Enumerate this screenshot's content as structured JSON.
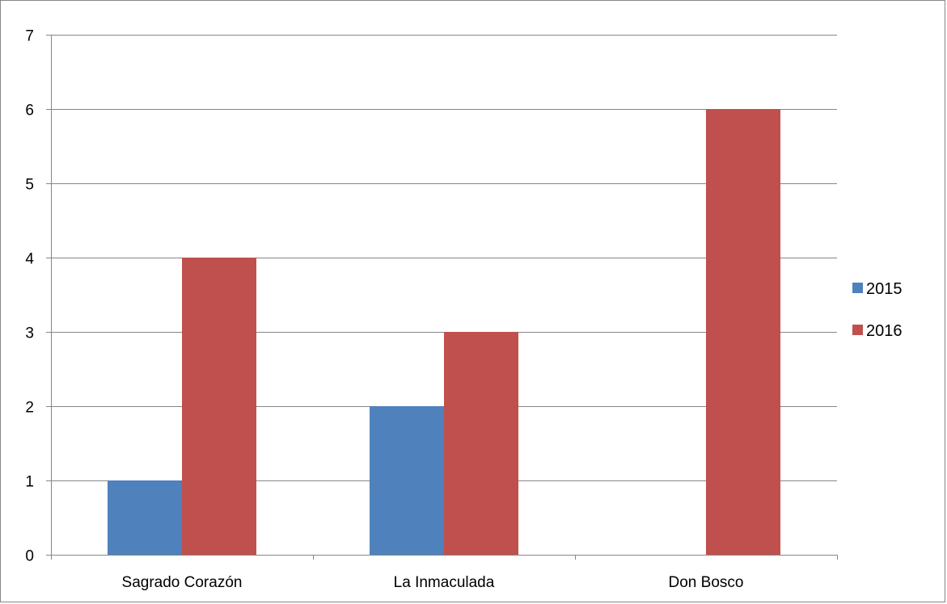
{
  "chart_data": {
    "type": "bar",
    "categories": [
      "Sagrado Corazón",
      "La Inmaculada",
      "Don Bosco"
    ],
    "series": [
      {
        "name": "2015",
        "values": [
          1,
          2,
          0
        ],
        "color": "#4F81BD"
      },
      {
        "name": "2016",
        "values": [
          4,
          3,
          6
        ],
        "color": "#C0504D"
      }
    ],
    "ylim": [
      0,
      7
    ],
    "yticks": [
      "0",
      "1",
      "2",
      "3",
      "4",
      "5",
      "6",
      "7"
    ],
    "grid": true,
    "legend": "right"
  }
}
